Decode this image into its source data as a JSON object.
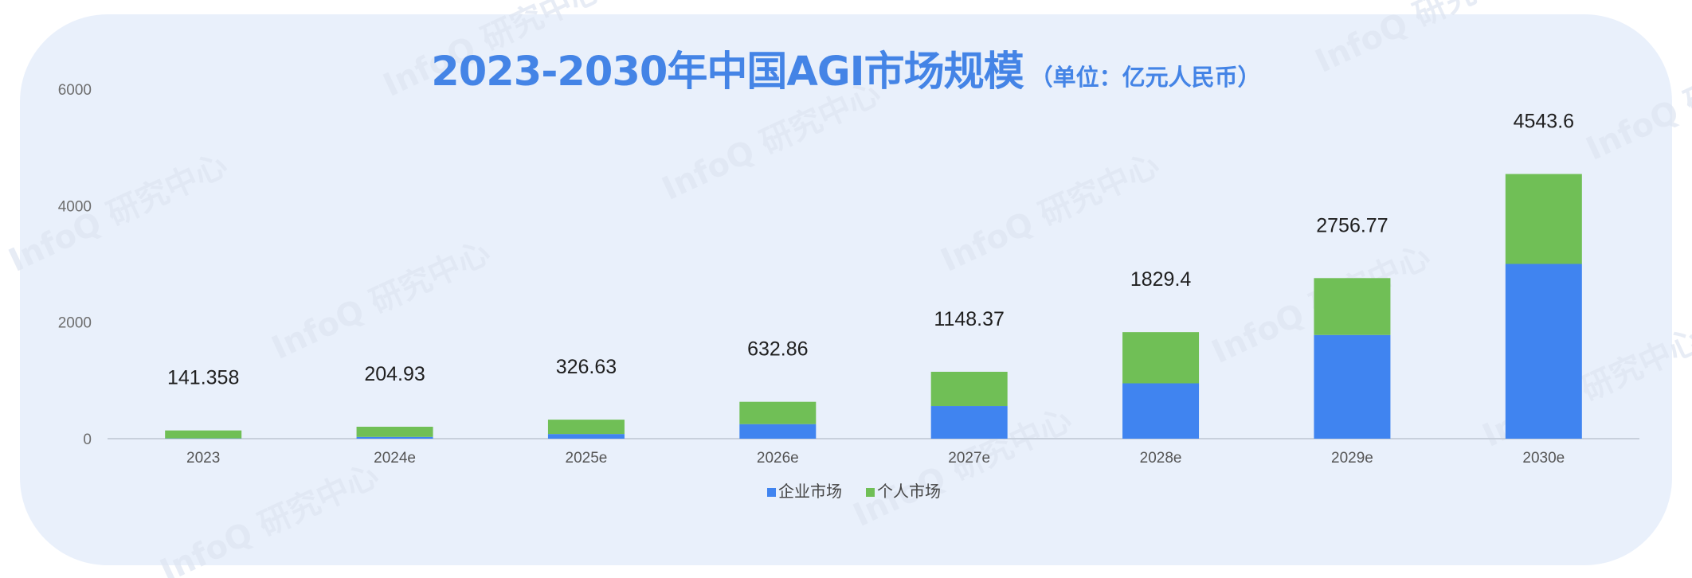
{
  "title": {
    "main": "2023-2030年中国AGI市场规模",
    "unit": "（单位：亿元人民币）"
  },
  "watermark": {
    "text": "InfoQ 研究中心"
  },
  "colors": {
    "background": "#ffffff",
    "panel": "#e9f0fb",
    "title": "#4484e6",
    "enterprise": "#4084f0",
    "personal": "#70bf56",
    "axis": "#c8d0dc"
  },
  "chart_data": {
    "type": "bar",
    "stacked": true,
    "categories": [
      "2023",
      "2024e",
      "2025e",
      "2026e",
      "2027e",
      "2028e",
      "2029e",
      "2030e"
    ],
    "series": [
      {
        "name": "企业市场",
        "color": "#4084f0",
        "values": [
          5,
          30,
          80,
          250,
          560,
          950,
          1780,
          3000
        ]
      },
      {
        "name": "个人市场",
        "color": "#70bf56",
        "values": [
          136.358,
          174.93,
          246.63,
          382.86,
          588.37,
          879.4,
          976.77,
          1543.6
        ]
      }
    ],
    "totals": [
      "141.358",
      "204.93",
      "326.63",
      "632.86",
      "1148.37",
      "1829.4",
      "2756.77",
      "4543.6"
    ],
    "ylim": [
      0,
      6000
    ],
    "yticks": [
      0,
      2000,
      4000,
      6000
    ],
    "grid": false,
    "legend": "bottom-center"
  }
}
